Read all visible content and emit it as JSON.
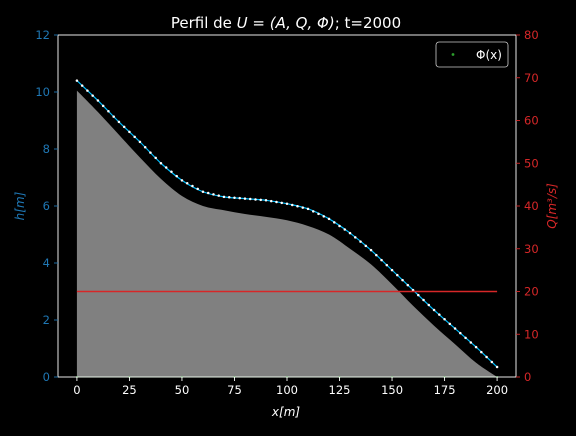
{
  "chart_data": {
    "type": "line",
    "title": {
      "prefix": "Perfil de ",
      "math": "U = (A, Q, Φ)",
      "suffix": "; t=2000"
    },
    "xlabel": "x[m]",
    "ylabel_left": "h[m]",
    "ylabel_right": "Q[m³/s]",
    "xlim": [
      -9,
      209
    ],
    "ylim_left": [
      0,
      12
    ],
    "ylim_right": [
      0,
      80
    ],
    "x_ticks": [
      0,
      25,
      50,
      75,
      100,
      125,
      150,
      175,
      200
    ],
    "y_ticks_left": [
      0,
      2,
      4,
      6,
      8,
      10,
      12
    ],
    "y_ticks_right": [
      0,
      10,
      20,
      30,
      40,
      50,
      60,
      70,
      80
    ],
    "legend": {
      "position": "top-right",
      "entries": [
        "Φ(x)"
      ]
    },
    "colors": {
      "background": "#000000",
      "axes": "#ffffff",
      "left_axis": "#1f77b4",
      "right_axis": "#d62728",
      "surface": "#00bfff",
      "bed_fill": "#808080",
      "discharge": "#d62728",
      "phi": "#2ca02c"
    },
    "series": [
      {
        "key": "surface_h",
        "axis": "left",
        "style": "dotted-line",
        "x": [
          0,
          10,
          20,
          30,
          40,
          50,
          60,
          70,
          80,
          90,
          100,
          110,
          120,
          130,
          140,
          150,
          160,
          170,
          180,
          190,
          200
        ],
        "y": [
          10.4,
          9.7,
          8.95,
          8.25,
          7.5,
          6.9,
          6.5,
          6.32,
          6.26,
          6.2,
          6.08,
          5.9,
          5.55,
          5.05,
          4.45,
          3.75,
          3.05,
          2.35,
          1.7,
          1.05,
          0.35
        ]
      },
      {
        "key": "bed_z",
        "axis": "left",
        "style": "filled-area",
        "x": [
          0,
          10,
          20,
          30,
          40,
          50,
          60,
          70,
          80,
          90,
          100,
          110,
          120,
          130,
          140,
          150,
          160,
          170,
          180,
          190,
          200
        ],
        "y": [
          10.05,
          9.3,
          8.5,
          7.7,
          6.95,
          6.35,
          6.0,
          5.85,
          5.72,
          5.62,
          5.5,
          5.3,
          5.0,
          4.5,
          3.95,
          3.25,
          2.5,
          1.8,
          1.15,
          0.5,
          0.0
        ]
      },
      {
        "key": "discharge_Q",
        "axis": "right",
        "style": "line",
        "x": [
          0,
          200
        ],
        "y": [
          20,
          20
        ]
      },
      {
        "key": "phi",
        "name": "Φ(x)",
        "axis": "left",
        "style": "dots",
        "x": [
          0,
          25,
          50,
          75,
          100,
          125,
          150,
          175,
          200
        ],
        "y": [
          0,
          0,
          0,
          0,
          0,
          0,
          0,
          0,
          0
        ]
      }
    ]
  }
}
